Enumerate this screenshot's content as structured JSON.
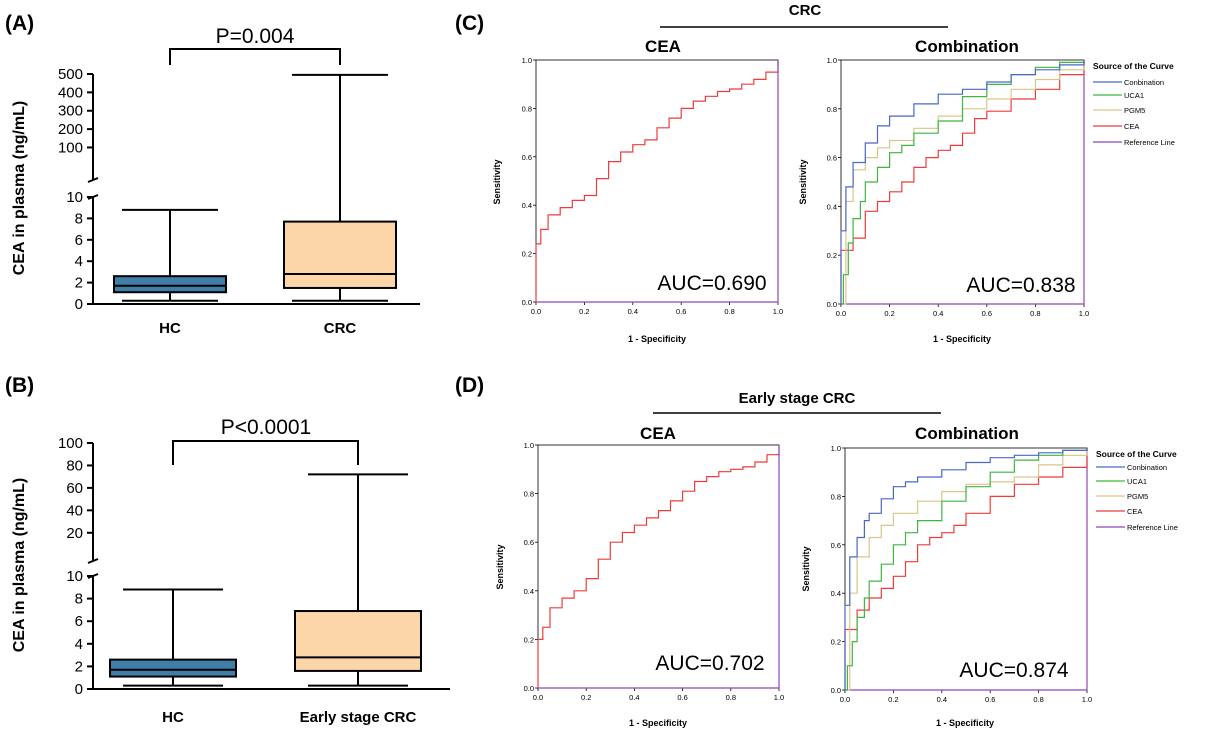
{
  "colors": {
    "hc_box": "#3f7ea6",
    "crc_box": "#fcd5a8",
    "combination": "#4a67c9",
    "uca1": "#3fb63f",
    "pgm5": "#d9c58a",
    "cea": "#ef3b3b",
    "reference": "#8e48b8"
  },
  "chart_data": [
    {
      "id": "A",
      "type": "box",
      "panel_label": "(A)",
      "ylabel": "CEA in plasma (ng/mL)",
      "categories": [
        "HC",
        "CRC"
      ],
      "significance": "P=0.004",
      "y_axis_segments": [
        {
          "range": [
            0,
            10
          ],
          "ticks": [
            "0",
            "2",
            "4",
            "6",
            "8",
            "10"
          ]
        },
        {
          "range": [
            10,
            500
          ],
          "ticks": [
            "100",
            "200",
            "300",
            "400",
            "500"
          ]
        }
      ],
      "boxes": [
        {
          "name": "HC",
          "min": 0.3,
          "q1": 1.1,
          "median": 1.7,
          "q3": 2.6,
          "max": 8.8,
          "color": "#3f7ea6"
        },
        {
          "name": "CRC",
          "min": 0.3,
          "q1": 1.5,
          "median": 2.8,
          "q3": 7.7,
          "max": 495,
          "color": "#fcd5a8"
        }
      ]
    },
    {
      "id": "B",
      "type": "box",
      "panel_label": "(B)",
      "ylabel": "CEA in plasma (ng/mL)",
      "categories": [
        "HC",
        "Early stage CRC"
      ],
      "significance": "P<0.0001",
      "y_axis_segments": [
        {
          "range": [
            0,
            10
          ],
          "ticks": [
            "0",
            "2",
            "4",
            "6",
            "8",
            "10"
          ]
        },
        {
          "range": [
            10,
            100
          ],
          "ticks": [
            "20",
            "40",
            "60",
            "80",
            "100"
          ]
        }
      ],
      "boxes": [
        {
          "name": "HC",
          "min": 0.3,
          "q1": 1.1,
          "median": 1.7,
          "q3": 2.6,
          "max": 8.8,
          "color": "#3f7ea6"
        },
        {
          "name": "Early stage CRC",
          "min": 0.3,
          "q1": 1.6,
          "median": 2.8,
          "q3": 6.9,
          "max": 72,
          "color": "#fcd5a8"
        }
      ]
    },
    {
      "id": "C",
      "type": "line",
      "panel_label": "(C)",
      "group_title": "CRC",
      "xlabel": "1 - Specificity",
      "ylabel": "Sensitivity",
      "ticks": [
        "0.0",
        "0.2",
        "0.4",
        "0.6",
        "0.8",
        "1.0"
      ],
      "xlim": [
        0,
        1
      ],
      "ylim": [
        0,
        1
      ],
      "legend_title": "Source of the Curve",
      "legend_items": [
        "Conbination",
        "UCA1",
        "PGM5",
        "CEA",
        "Reference Line"
      ],
      "subplots": [
        {
          "title": "CEA",
          "auc": "AUC=0.690",
          "series": [
            {
              "key": "cea",
              "x": [
                0,
                0,
                0.02,
                0.05,
                0.1,
                0.15,
                0.2,
                0.25,
                0.3,
                0.35,
                0.4,
                0.45,
                0.5,
                0.55,
                0.6,
                0.65,
                0.7,
                0.75,
                0.8,
                0.85,
                0.9,
                0.95,
                1.0
              ],
              "y": [
                0,
                0.24,
                0.3,
                0.36,
                0.39,
                0.42,
                0.44,
                0.51,
                0.58,
                0.62,
                0.65,
                0.67,
                0.72,
                0.76,
                0.8,
                0.83,
                0.85,
                0.87,
                0.88,
                0.9,
                0.92,
                0.95,
                1.0
              ]
            },
            {
              "key": "reference",
              "x": [
                0,
                1
              ],
              "y": [
                0,
                1
              ]
            }
          ]
        },
        {
          "title": "Combination",
          "auc": "AUC=0.838",
          "series": [
            {
              "key": "reference",
              "x": [
                0,
                1
              ],
              "y": [
                0,
                1
              ]
            },
            {
              "key": "cea",
              "x": [
                0,
                0,
                0.05,
                0.1,
                0.15,
                0.2,
                0.25,
                0.3,
                0.35,
                0.4,
                0.45,
                0.5,
                0.55,
                0.6,
                0.7,
                0.8,
                0.9,
                1.0
              ],
              "y": [
                0,
                0.22,
                0.27,
                0.38,
                0.42,
                0.46,
                0.5,
                0.56,
                0.6,
                0.63,
                0.65,
                0.7,
                0.76,
                0.79,
                0.84,
                0.88,
                0.94,
                1.0
              ]
            },
            {
              "key": "pgm5",
              "x": [
                0,
                0.02,
                0.05,
                0.1,
                0.15,
                0.2,
                0.3,
                0.4,
                0.5,
                0.6,
                0.7,
                0.8,
                0.9,
                1.0
              ],
              "y": [
                0,
                0.42,
                0.55,
                0.6,
                0.64,
                0.67,
                0.72,
                0.77,
                0.8,
                0.84,
                0.88,
                0.92,
                0.96,
                1.0
              ]
            },
            {
              "key": "uca1",
              "x": [
                0,
                0.01,
                0.03,
                0.05,
                0.08,
                0.1,
                0.15,
                0.2,
                0.25,
                0.3,
                0.4,
                0.5,
                0.6,
                0.7,
                0.8,
                0.9,
                1.0
              ],
              "y": [
                0,
                0.12,
                0.25,
                0.35,
                0.42,
                0.5,
                0.56,
                0.62,
                0.65,
                0.7,
                0.75,
                0.85,
                0.9,
                0.94,
                0.97,
                0.99,
                1.0
              ]
            },
            {
              "key": "combination",
              "x": [
                0,
                0,
                0.02,
                0.05,
                0.1,
                0.15,
                0.2,
                0.3,
                0.4,
                0.5,
                0.6,
                0.7,
                0.8,
                0.9,
                1.0
              ],
              "y": [
                0,
                0.3,
                0.48,
                0.58,
                0.66,
                0.73,
                0.77,
                0.82,
                0.86,
                0.88,
                0.91,
                0.94,
                0.96,
                0.98,
                1.0
              ]
            }
          ]
        }
      ]
    },
    {
      "id": "D",
      "type": "line",
      "panel_label": "(D)",
      "group_title": "Early stage CRC",
      "xlabel": "1 - Specificity",
      "ylabel": "Sensitivity",
      "ticks": [
        "0.0",
        "0.2",
        "0.4",
        "0.6",
        "0.8",
        "1.0"
      ],
      "xlim": [
        0,
        1
      ],
      "ylim": [
        0,
        1
      ],
      "legend_title": "Source of the Curve",
      "legend_items": [
        "Conbination",
        "UCA1",
        "PGM5",
        "CEA",
        "Reference Line"
      ],
      "subplots": [
        {
          "title": "CEA",
          "auc": "AUC=0.702",
          "series": [
            {
              "key": "cea",
              "x": [
                0,
                0,
                0.02,
                0.05,
                0.1,
                0.15,
                0.2,
                0.25,
                0.3,
                0.35,
                0.4,
                0.45,
                0.5,
                0.55,
                0.6,
                0.65,
                0.7,
                0.75,
                0.8,
                0.85,
                0.9,
                0.95,
                1.0
              ],
              "y": [
                0,
                0.2,
                0.25,
                0.33,
                0.37,
                0.4,
                0.45,
                0.53,
                0.6,
                0.64,
                0.67,
                0.7,
                0.73,
                0.77,
                0.81,
                0.85,
                0.87,
                0.89,
                0.9,
                0.91,
                0.93,
                0.96,
                1.0
              ]
            },
            {
              "key": "reference",
              "x": [
                0,
                1
              ],
              "y": [
                0,
                1
              ]
            }
          ]
        },
        {
          "title": "Combination",
          "auc": "AUC=0.874",
          "series": [
            {
              "key": "reference",
              "x": [
                0,
                1
              ],
              "y": [
                0,
                1
              ]
            },
            {
              "key": "cea",
              "x": [
                0,
                0,
                0.05,
                0.1,
                0.15,
                0.2,
                0.25,
                0.3,
                0.35,
                0.4,
                0.45,
                0.5,
                0.6,
                0.7,
                0.8,
                0.9,
                1.0
              ],
              "y": [
                0,
                0.25,
                0.33,
                0.38,
                0.42,
                0.47,
                0.53,
                0.6,
                0.63,
                0.65,
                0.68,
                0.73,
                0.8,
                0.85,
                0.88,
                0.92,
                1.0
              ]
            },
            {
              "key": "pgm5",
              "x": [
                0,
                0.02,
                0.05,
                0.1,
                0.15,
                0.2,
                0.3,
                0.4,
                0.5,
                0.6,
                0.7,
                0.8,
                0.9,
                1.0
              ],
              "y": [
                0,
                0.4,
                0.55,
                0.63,
                0.68,
                0.73,
                0.78,
                0.82,
                0.85,
                0.86,
                0.88,
                0.93,
                0.97,
                1.0
              ]
            },
            {
              "key": "uca1",
              "x": [
                0,
                0.01,
                0.03,
                0.05,
                0.08,
                0.1,
                0.15,
                0.2,
                0.25,
                0.3,
                0.4,
                0.5,
                0.6,
                0.7,
                0.8,
                0.9,
                1.0
              ],
              "y": [
                0,
                0.1,
                0.2,
                0.3,
                0.38,
                0.45,
                0.52,
                0.6,
                0.65,
                0.7,
                0.78,
                0.84,
                0.9,
                0.95,
                0.97,
                0.99,
                1.0
              ]
            },
            {
              "key": "combination",
              "x": [
                0,
                0,
                0.02,
                0.05,
                0.08,
                0.1,
                0.15,
                0.2,
                0.25,
                0.3,
                0.4,
                0.5,
                0.6,
                0.7,
                0.8,
                0.9,
                1.0
              ],
              "y": [
                0,
                0.35,
                0.55,
                0.63,
                0.7,
                0.73,
                0.79,
                0.84,
                0.86,
                0.88,
                0.91,
                0.94,
                0.96,
                0.97,
                0.98,
                0.99,
                1.0
              ]
            }
          ]
        }
      ]
    }
  ]
}
